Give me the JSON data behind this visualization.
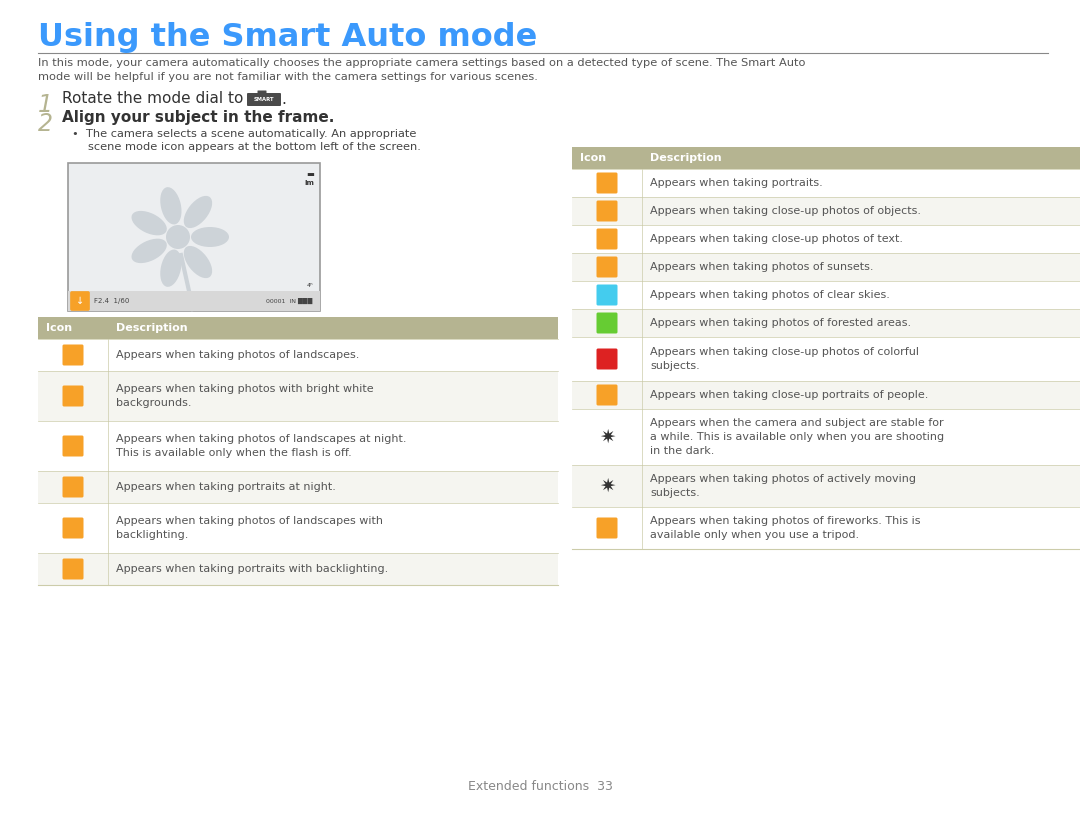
{
  "title": "Using the Smart Auto mode",
  "title_color": "#3B99FC",
  "title_underline_color": "#888888",
  "bg_color": "#FFFFFF",
  "intro_line1": "In this mode, your camera automatically chooses the appropriate camera settings based on a detected type of scene. The Smart Auto",
  "intro_line2": "mode will be helpful if you are not familiar with the camera settings for various scenes.",
  "step1_num": "1",
  "step1_text": "Rotate the mode dial to",
  "step2_num": "2",
  "step2_text": "Align your subject in the frame.",
  "bullet_line1": "The camera selects a scene automatically. An appropriate",
  "bullet_line2": "scene mode icon appears at the bottom left of the screen.",
  "table_header_bg": "#B5B491",
  "table_header_text_color": "#FFFFFF",
  "table_divider_color": "#CCCCAA",
  "text_color": "#555555",
  "step_num_color": "#B5B491",
  "orange_color": "#F7A128",
  "footer_text": "Extended functions  33",
  "left_table_rows": [
    {
      "icon_color": "#F7A128",
      "desc": "Appears when taking photos of landscapes."
    },
    {
      "icon_color": "#F7A128",
      "desc": "Appears when taking photos with bright white\nbackgrounds."
    },
    {
      "icon_color": "#F7A128",
      "desc": "Appears when taking photos of landscapes at night.\nThis is available only when the flash is off."
    },
    {
      "icon_color": "#F7A128",
      "desc": "Appears when taking portraits at night."
    },
    {
      "icon_color": "#F7A128",
      "desc": "Appears when taking photos of landscapes with\nbacklighting."
    },
    {
      "icon_color": "#F7A128",
      "desc": "Appears when taking portraits with backlighting."
    }
  ],
  "right_table_rows": [
    {
      "icon_color": "#F7A128",
      "desc": "Appears when taking portraits."
    },
    {
      "icon_color": "#F7A128",
      "desc": "Appears when taking close-up photos of objects."
    },
    {
      "icon_color": "#F7A128",
      "desc": "Appears when taking close-up photos of text."
    },
    {
      "icon_color": "#F7A128",
      "desc": "Appears when taking photos of sunsets."
    },
    {
      "icon_color": "#44CCEE",
      "desc": "Appears when taking photos of clear skies."
    },
    {
      "icon_color": "#66CC33",
      "desc": "Appears when taking photos of forested areas."
    },
    {
      "icon_color": "#DD2222",
      "desc": "Appears when taking close-up photos of colorful\nsubjects."
    },
    {
      "icon_color": "#F7A128",
      "desc": "Appears when taking close-up portraits of people."
    },
    {
      "icon_color": "#555555",
      "desc": "Appears when the camera and subject are stable for\na while. This is available only when you are shooting\nin the dark."
    },
    {
      "icon_color": "#555555",
      "desc": "Appears when taking photos of actively moving\nsubjects."
    },
    {
      "icon_color": "#F7A128",
      "desc": "Appears when taking photos of fireworks. This is\navailable only when you use a tripod."
    }
  ]
}
